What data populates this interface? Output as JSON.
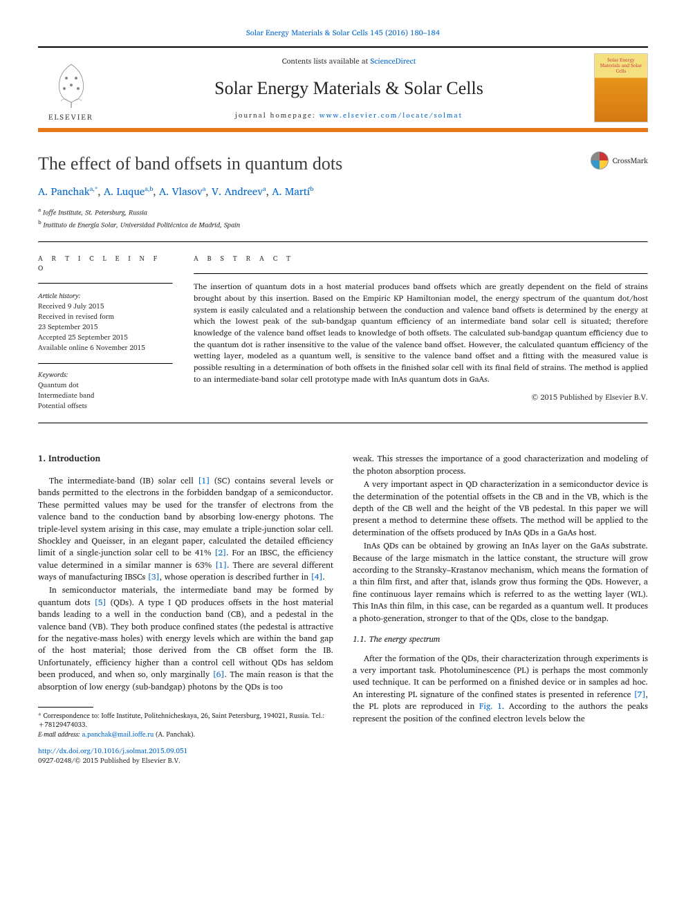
{
  "header": {
    "citation": "Solar Energy Materials & Solar Cells 145 (2016) 180–184",
    "contents_prefix": "Contents lists available at ",
    "contents_link": "ScienceDirect",
    "journal_name": "Solar Energy Materials & Solar Cells",
    "homepage_prefix": "journal homepage: ",
    "homepage_url": "www.elsevier.com/locate/solmat",
    "elsevier": "ELSEVIER",
    "cover_title": "Solar Energy Materials and Solar Cells"
  },
  "article": {
    "title": "The effect of band offsets in quantum dots",
    "crossmark": "CrossMark",
    "authors_html": "A. Panchak",
    "authors": [
      {
        "name": "A. Panchak",
        "sup": "a,*"
      },
      {
        "name": "A. Luque",
        "sup": "a,b"
      },
      {
        "name": "A. Vlasov",
        "sup": "a"
      },
      {
        "name": "V. Andreev",
        "sup": "a"
      },
      {
        "name": "A. Martí",
        "sup": "b"
      }
    ],
    "affiliations": [
      {
        "sup": "a",
        "text": "Ioffe Institute, St. Petersburg, Russia"
      },
      {
        "sup": "b",
        "text": "Instituto de Energía Solar, Universidad Politécnica de Madrid, Spain"
      }
    ]
  },
  "info": {
    "heading": "A R T I C L E  I N F O",
    "history_label": "Article history:",
    "received": "Received 9 July 2015",
    "revised1": "Received in revised form",
    "revised2": "23 September 2015",
    "accepted": "Accepted 25 September 2015",
    "online": "Available online 6 November 2015",
    "keywords_label": "Keywords:",
    "keywords": [
      "Quantum dot",
      "Intermediate band",
      "Potential offsets"
    ]
  },
  "abstract": {
    "heading": "A B S T R A C T",
    "text": "The insertion of quantum dots in a host material produces band offsets which are greatly dependent on the field of strains brought about by this insertion. Based on the Empiric KP Hamiltonian model, the energy spectrum of the quantum dot/host system is easily calculated and a relationship between the conduction and valence band offsets is determined by the energy at which the lowest peak of the sub-bandgap quantum efficiency of an intermediate band solar cell is situated; therefore knowledge of the valence band offset leads to knowledge of both offsets. The calculated sub-bandgap quantum efficiency due to the quantum dot is rather insensitive to the value of the valence band offset. However, the calculated quantum efficiency of the wetting layer, modeled as a quantum well, is sensitive to the valence band offset and a fitting with the measured value is possible resulting in a determination of both offsets in the finished solar cell with its final field of strains. The method is applied to an intermediate-band solar cell prototype made with InAs quantum dots in GaAs.",
    "copyright": "© 2015 Published by Elsevier B.V."
  },
  "body": {
    "section1": "1.  Introduction",
    "p1a": "The intermediate-band (IB) solar cell ",
    "ref1": "[1]",
    "p1b": " (SC) contains several levels or bands permitted to the electrons in the forbidden bandgap of a semiconductor. These permitted values may be used for the transfer of electrons from the valence band to the conduction band by absorbing low-energy photons. The triple-level system arising in this case, may emulate a triple-junction solar cell. Shockley and Queisser, in an elegant paper, calculated the detailed efficiency limit of a single-junction solar cell to be 41% ",
    "ref2": "[2]",
    "p1c": ". For an IBSC, the efficiency value determined in a similar manner is 63% ",
    "ref1b": "[1]",
    "p1d": ". There are several different ways of manufacturing IBSCs ",
    "ref3": "[3]",
    "p1e": ", whose operation is described further in ",
    "ref4": "[4]",
    "p1f": ".",
    "p2a": "In semiconductor materials, the intermediate band may be formed by quantum dots ",
    "ref5": "[5]",
    "p2b": " (QDs). A type I QD produces offsets in the host material bands leading to a well in the conduction band (CB), and a pedestal in the valence band (VB). They both produce confined states (the pedestal is attractive for the negative-mass holes) with energy levels which are within the band gap of the host material; those derived from the CB offset form the IB. Unfortunately, efficiency higher than a control cell without QDs has seldom been produced, and when so, only marginally ",
    "ref6": "[6]",
    "p2c": ". The main reason is that the absorption of low energy (sub-bandgap) photons by the QDs is too",
    "p3": "weak. This stresses the importance of a good characterization and modeling of the photon absorption process.",
    "p4": "A very important aspect in QD characterization in a semiconductor device is the determination of the potential offsets in the CB and in the VB, which is the depth of the CB well and the height of the VB pedestal. In this paper we will present a method to determine these offsets. The method will be applied to the determination of the offsets produced by InAs QDs in a GaAs host.",
    "p5": "InAs QDs can be obtained by growing an InAs layer on the GaAs substrate. Because of the large mismatch in the lattice constant, the structure will grow according to the Stransky–Krastanov mechanism, which means the formation of a thin film first, and after that, islands grow thus forming the QDs. However, a fine continuous layer remains which is referred to as the wetting layer (WL). This InAs thin film, in this case, can be regarded as a quantum well. It produces a photo-generation, stronger to that of the QDs, close to the bandgap.",
    "subsection11": "1.1.  The energy spectrum",
    "p6a": "After the formation of the QDs, their characterization through experiments is a very important task. Photoluminescence (PL) is perhaps the most commonly used technique. It can be performed on a finished device or in samples ad hoc. An interesting PL signature of the confined states is presented in reference ",
    "ref7": "[7]",
    "p6b": ", the PL plots are reproduced in ",
    "fig1": "Fig. 1",
    "p6c": ". According to the authors the peaks represent the position of the confined electron levels below the"
  },
  "footnotes": {
    "corr": "* Correspondence to: Ioffe Institute, Politehnicheskaya, 26, Saint Petersburg, 194021, Russia. Tel.: +78129474033.",
    "email_label": "E-mail address: ",
    "email": "a.panchak@mail.ioffe.ru",
    "email_suffix": " (A. Panchak)."
  },
  "doi": {
    "url": "http://dx.doi.org/10.1016/j.solmat.2015.09.051",
    "issn": "0927-0248/© 2015 Published by Elsevier B.V."
  }
}
